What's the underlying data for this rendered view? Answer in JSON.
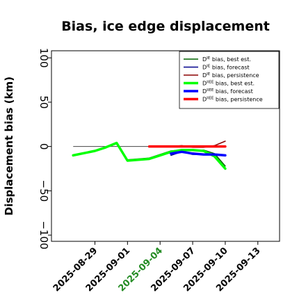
{
  "chart_data": {
    "type": "line",
    "title": "Bias, ice edge displacement",
    "ylabel": "Displacement bias (km)",
    "xlabel": "",
    "ylim": [
      -107,
      108
    ],
    "xlim": [
      "2025-08-25",
      "2025-09-15"
    ],
    "y_ticks": [
      100,
      50,
      0,
      -50,
      -100
    ],
    "y_tick_labels": [
      "100",
      "50",
      "0",
      "−50",
      "−100"
    ],
    "x_ticks": [
      "2025-08-29",
      "2025-09-01",
      "2025-09-04",
      "2025-09-07",
      "2025-09-10",
      "2025-09-13"
    ],
    "x_tick_labels": [
      "2025-08-29",
      "2025-09-01",
      "2025-09-04",
      "2025-09-07",
      "2025-09-10",
      "2025-09-13"
    ],
    "x_tick_colors": [
      "#000000",
      "#000000",
      "#228b22",
      "#000000",
      "#000000",
      "#000000"
    ],
    "zero_line": true,
    "grid": false,
    "legend_position": "top-right",
    "series": [
      {
        "name": "bias, best est.",
        "name_prefix": "D",
        "name_sup": "IE",
        "color": "#006400",
        "width": 1.5,
        "x": [
          "2025-08-27",
          "2025-08-29",
          "2025-08-30",
          "2025-08-31",
          "2025-09-01",
          "2025-09-03",
          "2025-09-04",
          "2025-09-05",
          "2025-09-06",
          "2025-09-07",
          "2025-09-08",
          "2025-09-09",
          "2025-09-10"
        ],
        "values": [
          -10,
          -5,
          -1,
          3,
          -15,
          -13,
          -9,
          -5,
          -4,
          -4,
          -4,
          -8,
          -22
        ]
      },
      {
        "name": "bias, forecast",
        "name_prefix": "D",
        "name_sup": "IE",
        "color": "#00008b",
        "width": 1.5,
        "x": [
          "2025-09-05",
          "2025-09-06",
          "2025-09-07",
          "2025-09-08",
          "2025-09-09",
          "2025-09-10"
        ],
        "values": [
          -10,
          -6,
          -9,
          -9,
          -9,
          -10
        ]
      },
      {
        "name": "bias, persistence",
        "name_prefix": "D",
        "name_sup": "IE",
        "color": "#8b0000",
        "width": 1.5,
        "x": [
          "2025-09-03",
          "2025-09-04",
          "2025-09-05",
          "2025-09-06",
          "2025-09-07",
          "2025-09-08",
          "2025-09-09",
          "2025-09-10"
        ],
        "values": [
          0,
          0,
          0,
          1,
          -1,
          -1,
          1,
          6
        ]
      },
      {
        "name": "bias, best est.",
        "name_prefix": "D",
        "name_sup": "IIEE",
        "color": "#00ff00",
        "width": 3.5,
        "x": [
          "2025-08-27",
          "2025-08-29",
          "2025-08-30",
          "2025-08-31",
          "2025-09-01",
          "2025-09-03",
          "2025-09-04",
          "2025-09-05",
          "2025-09-06",
          "2025-09-07",
          "2025-09-08",
          "2025-09-09",
          "2025-09-10"
        ],
        "values": [
          -10,
          -5,
          -1,
          4,
          -16,
          -14,
          -10,
          -6,
          -4,
          -4,
          -5,
          -11,
          -25
        ]
      },
      {
        "name": "bias, forecast",
        "name_prefix": "D",
        "name_sup": "IIEE",
        "color": "#0000ff",
        "width": 3.5,
        "x": [
          "2025-09-05",
          "2025-09-06",
          "2025-09-07",
          "2025-09-08",
          "2025-09-09",
          "2025-09-10"
        ],
        "values": [
          -8,
          -6,
          -8,
          -9,
          -9,
          -10
        ]
      },
      {
        "name": "bias, persistence",
        "name_prefix": "D",
        "name_sup": "IIEE",
        "color": "#ff0000",
        "width": 3.5,
        "x": [
          "2025-09-03",
          "2025-09-04",
          "2025-09-05",
          "2025-09-06",
          "2025-09-07",
          "2025-09-08",
          "2025-09-09",
          "2025-09-10"
        ],
        "values": [
          0,
          0,
          0,
          0,
          0,
          0,
          0,
          0
        ]
      }
    ]
  }
}
